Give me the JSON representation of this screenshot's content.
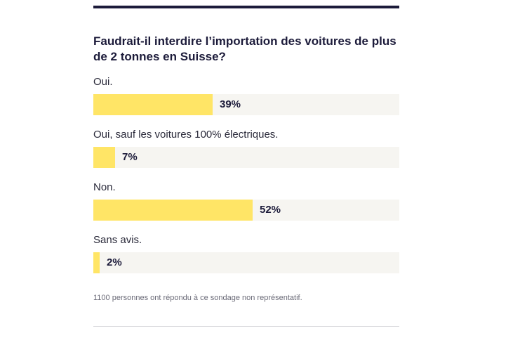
{
  "poll": {
    "question": "Faudrait-il interdire l’importation des voitures de plus de 2 tonnes en Suisse?",
    "options": [
      {
        "label": "Oui.",
        "percent": 39,
        "percent_label": "39%"
      },
      {
        "label": "Oui, sauf les voitures 100% électriques.",
        "percent": 7,
        "percent_label": "7%"
      },
      {
        "label": "Non.",
        "percent": 52,
        "percent_label": "52%"
      },
      {
        "label": "Sans avis.",
        "percent": 2,
        "percent_label": "2%"
      }
    ],
    "footnote": "1100 personnes ont répondu à ce sondage non représentatif."
  },
  "colors": {
    "bar_fill": "#ffe566",
    "bar_track": "#f6f5f1",
    "rule": "#1c1b3a"
  }
}
